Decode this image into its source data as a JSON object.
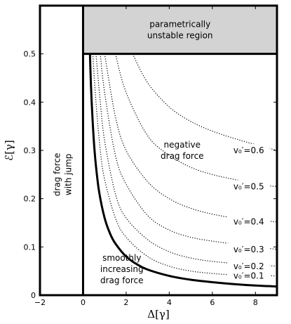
{
  "chart_data": {
    "type": "line",
    "xlabel": "Δ[γ]",
    "ylabel": "ℰ[γ]",
    "xlim": [
      -2,
      9
    ],
    "ylim": [
      0,
      0.6
    ],
    "x_ticks": [
      -2,
      0,
      2,
      4,
      6,
      8
    ],
    "y_ticks": [
      0,
      0.1,
      0.2,
      0.3,
      0.4,
      0.5
    ],
    "grid": false,
    "boundary_series": {
      "style": "solid-thick",
      "x": [
        0.32,
        0.35,
        0.4,
        0.5,
        0.6,
        0.75,
        1,
        1.25,
        1.5,
        2,
        2.5,
        3,
        4,
        5,
        6,
        7,
        8,
        9
      ],
      "y": [
        0.5,
        0.456,
        0.4,
        0.32,
        0.267,
        0.213,
        0.16,
        0.128,
        0.107,
        0.08,
        0.064,
        0.053,
        0.04,
        0.032,
        0.027,
        0.023,
        0.02,
        0.018
      ]
    },
    "vertical_boundary": {
      "x": 0,
      "y_range": [
        0,
        0.6
      ]
    },
    "horizontal_boundary": {
      "y": 0.5,
      "x_range": [
        0,
        9
      ]
    },
    "series": [
      {
        "label": "v₀′=0.1",
        "style": "dotted",
        "x": [
          0.45,
          0.6,
          0.8,
          1,
          1.5,
          2,
          3,
          4,
          5,
          6,
          7,
          8,
          9
        ],
        "y": [
          0.5,
          0.4,
          0.3,
          0.24,
          0.16,
          0.12,
          0.08,
          0.06,
          0.05,
          0.045,
          0.042,
          0.041,
          0.04
        ]
      },
      {
        "label": "v₀′=0.2",
        "style": "dotted",
        "x": [
          0.6,
          0.8,
          1,
          1.5,
          2,
          3,
          4,
          5,
          6,
          7,
          8,
          9
        ],
        "y": [
          0.5,
          0.4,
          0.32,
          0.21,
          0.16,
          0.115,
          0.09,
          0.077,
          0.07,
          0.066,
          0.063,
          0.06
        ]
      },
      {
        "label": "v₀′=0.3",
        "style": "dotted",
        "x": [
          0.8,
          1,
          1.5,
          2,
          3,
          4,
          5,
          6,
          7,
          8,
          9
        ],
        "y": [
          0.5,
          0.42,
          0.29,
          0.23,
          0.165,
          0.135,
          0.12,
          0.112,
          0.106,
          0.1,
          0.095
        ]
      },
      {
        "label": "v₀′=0.4",
        "style": "dotted",
        "x": [
          1,
          1.5,
          2,
          3,
          4,
          5,
          6,
          7,
          8,
          9
        ],
        "y": [
          0.5,
          0.37,
          0.3,
          0.235,
          0.2,
          0.18,
          0.168,
          0.16,
          0.155,
          0.152
        ]
      },
      {
        "label": "v₀′=0.5",
        "style": "dotted",
        "x": [
          1.5,
          2,
          3,
          4,
          5,
          6,
          7,
          8,
          9
        ],
        "y": [
          0.5,
          0.42,
          0.33,
          0.29,
          0.265,
          0.25,
          0.24,
          0.23,
          0.225
        ]
      },
      {
        "label": "v₀′=0.6",
        "style": "dotted",
        "x": [
          2.3,
          3,
          4,
          5,
          6,
          7,
          8,
          9
        ],
        "y": [
          0.5,
          0.44,
          0.39,
          0.36,
          0.34,
          0.325,
          0.312,
          0.3
        ]
      }
    ],
    "regions": [
      {
        "label_lines": [
          "parametrically",
          "unstable region"
        ],
        "x_range": [
          0,
          9
        ],
        "y_range": [
          0.5,
          0.6
        ],
        "fill": "#d3d3d3"
      },
      {
        "label_lines": [
          "drag force",
          "with jump"
        ],
        "rotation": -90
      },
      {
        "label_lines": [
          "negative",
          "drag force"
        ]
      },
      {
        "label_lines": [
          "smoothly",
          "increasing",
          "drag force"
        ]
      }
    ]
  }
}
